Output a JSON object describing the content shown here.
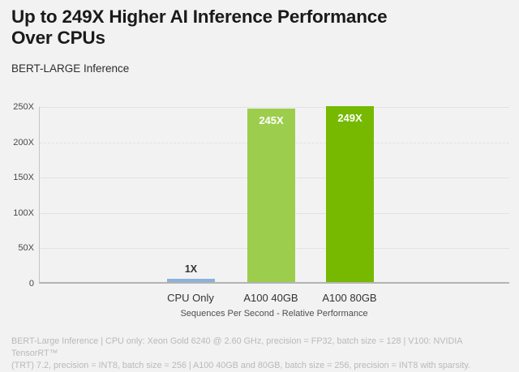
{
  "header": {
    "title_lines": [
      "Up to 249X Higher AI Inference Performance",
      "Over CPUs"
    ],
    "subtitle": "BERT-LARGE Inference"
  },
  "chart_data": {
    "type": "bar",
    "title": "Up to 249X Higher AI Inference Performance Over CPUs",
    "subtitle": "BERT-LARGE Inference",
    "categories": [
      "CPU Only",
      "A100 40GB",
      "A100 80GB"
    ],
    "values": [
      1,
      245,
      249
    ],
    "value_labels": [
      "1X",
      "245X",
      "249X"
    ],
    "bar_colors": [
      "#8AB1DC",
      "#9CCD4D",
      "#76B900"
    ],
    "ylim": [
      0,
      250
    ],
    "yticks": [
      0,
      50,
      100,
      150,
      200,
      250
    ],
    "ytick_labels_top_to_bottom": [
      "250X",
      "200X",
      "150X",
      "100X",
      "50X",
      "0"
    ],
    "xlabel": "Sequences Per Second - Relative Performance",
    "grid": "horizontal",
    "legend": "none",
    "background": "#f2f2f2"
  },
  "footnote": {
    "lines": [
      "BERT-Large Inference | CPU only: Xeon Gold 6240 @ 2.60 GHz, precision = FP32, batch size = 128 | V100: NVIDIA TensorRT™",
      "(TRT) 7.2, precision = INT8, batch size = 256 | A100 40GB and 80GB, batch size = 256, precision = INT8 with sparsity."
    ]
  }
}
